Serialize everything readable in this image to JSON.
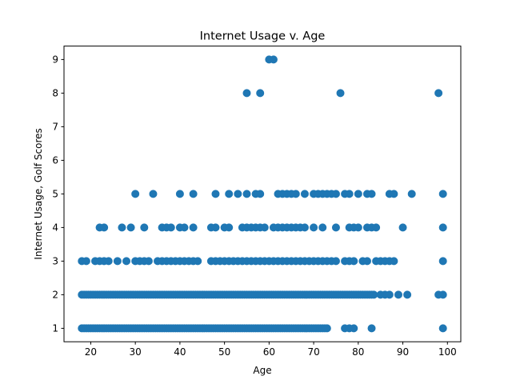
{
  "chart_data": {
    "type": "scatter",
    "title": "Internet Usage v. Age",
    "xlabel": "Age",
    "ylabel": "Internet Usage, Golf Scores",
    "xlim": [
      14.0,
      103.0
    ],
    "ylim": [
      0.6,
      9.4
    ],
    "xticks": [
      20,
      30,
      40,
      50,
      60,
      70,
      80,
      90,
      100
    ],
    "yticks": [
      1,
      2,
      3,
      4,
      5,
      6,
      7,
      8,
      9
    ],
    "grid": false,
    "legend": "none",
    "marker_color": "#1f77b4",
    "series": [
      {
        "points": [
          {
            "y": 1,
            "x": [
              18,
              18.5,
              19,
              19.5,
              20,
              20.5,
              21,
              21.5,
              22,
              22.5,
              23,
              23.5,
              24,
              24.5,
              25,
              25.5,
              26,
              26.5,
              27,
              27.5,
              28,
              28.5,
              29,
              29.5,
              30,
              30.5,
              31,
              31.5,
              32,
              32.5,
              33,
              33.5,
              34,
              34.5,
              35,
              35.5,
              36,
              36.5,
              37,
              37.5,
              38,
              38.5,
              39,
              39.5,
              40,
              40.5,
              41,
              41.5,
              42,
              42.5,
              43,
              43.5,
              44,
              44.5,
              45,
              45.5,
              46,
              46.5,
              47,
              47.5,
              48,
              48.5,
              49,
              49.5,
              50,
              50.5,
              51,
              51.5,
              52,
              52.5,
              53,
              53.5,
              54,
              54.5,
              55,
              55.5,
              56,
              56.5,
              57,
              57.5,
              58,
              58.5,
              59,
              59.5,
              60,
              60.5,
              61,
              61.5,
              62,
              62.5,
              63,
              63.5,
              64,
              64.5,
              65,
              65.5,
              66,
              66.5,
              67,
              67.5,
              68,
              68.5,
              69,
              69.5,
              70,
              70.5,
              71,
              71.5,
              72,
              72.5,
              73,
              77,
              78,
              79,
              83,
              99
            ]
          },
          {
            "y": 2,
            "x": [
              18,
              18.5,
              19,
              19.5,
              20,
              20.5,
              21,
              21.5,
              22,
              22.5,
              23,
              23.5,
              24,
              24.5,
              25,
              25.5,
              26,
              26.5,
              27,
              27.5,
              28,
              28.5,
              29,
              29.5,
              30,
              30.5,
              31,
              31.5,
              32,
              32.5,
              33,
              33.5,
              34,
              34.5,
              35,
              35.5,
              36,
              36.5,
              37,
              37.5,
              38,
              38.5,
              39,
              39.5,
              40,
              40.5,
              41,
              41.5,
              42,
              42.5,
              43,
              43.5,
              44,
              44.5,
              45,
              45.5,
              46,
              46.5,
              47,
              47.5,
              48,
              48.5,
              49,
              49.5,
              50,
              50.5,
              51,
              51.5,
              52,
              52.5,
              53,
              53.5,
              54,
              54.5,
              55,
              55.5,
              56,
              56.5,
              57,
              57.5,
              58,
              58.5,
              59,
              59.5,
              60,
              60.5,
              61,
              61.5,
              62,
              62.5,
              63,
              63.5,
              64,
              64.5,
              65,
              65.5,
              66,
              66.5,
              67,
              67.5,
              68,
              68.5,
              69,
              69.5,
              70,
              70.5,
              71,
              71.5,
              72,
              72.5,
              73,
              73.5,
              74,
              74.5,
              75,
              75.5,
              76,
              76.5,
              77,
              77.5,
              78,
              78.5,
              79,
              79.5,
              80,
              80.5,
              81,
              81.5,
              82,
              82.5,
              83,
              83.5,
              85,
              86,
              87,
              89,
              91,
              98,
              99
            ]
          },
          {
            "y": 3,
            "x": [
              18,
              19,
              21,
              22,
              23,
              24,
              26,
              28,
              30,
              31,
              32,
              33,
              35,
              36,
              37,
              38,
              39,
              40,
              41,
              42,
              43,
              44,
              47,
              48,
              49,
              50,
              51,
              52,
              53,
              54,
              55,
              56,
              57,
              58,
              59,
              60,
              61,
              62,
              63,
              64,
              65,
              66,
              67,
              68,
              69,
              70,
              71,
              72,
              73,
              74,
              75,
              77,
              78,
              79,
              81,
              82,
              84,
              85,
              86,
              87,
              88,
              99
            ]
          },
          {
            "y": 4,
            "x": [
              22,
              23,
              27,
              29,
              32,
              36,
              37,
              38,
              40,
              41,
              43,
              47,
              48,
              50,
              51,
              54,
              55,
              56,
              57,
              58,
              59,
              61,
              62,
              63,
              64,
              65,
              66,
              67,
              68,
              70,
              72,
              75,
              78,
              79,
              80,
              82,
              83,
              84,
              90,
              99
            ]
          },
          {
            "y": 5,
            "x": [
              30,
              34,
              40,
              43,
              48,
              51,
              53,
              55,
              57,
              58,
              62,
              63,
              64,
              65,
              66,
              68,
              70,
              71,
              72,
              73,
              74,
              75,
              77,
              78,
              80,
              82,
              83,
              87,
              88,
              92,
              99
            ]
          },
          {
            "y": 8,
            "x": [
              55,
              58,
              76,
              98
            ]
          },
          {
            "y": 9,
            "x": [
              60,
              61
            ]
          }
        ]
      }
    ]
  }
}
